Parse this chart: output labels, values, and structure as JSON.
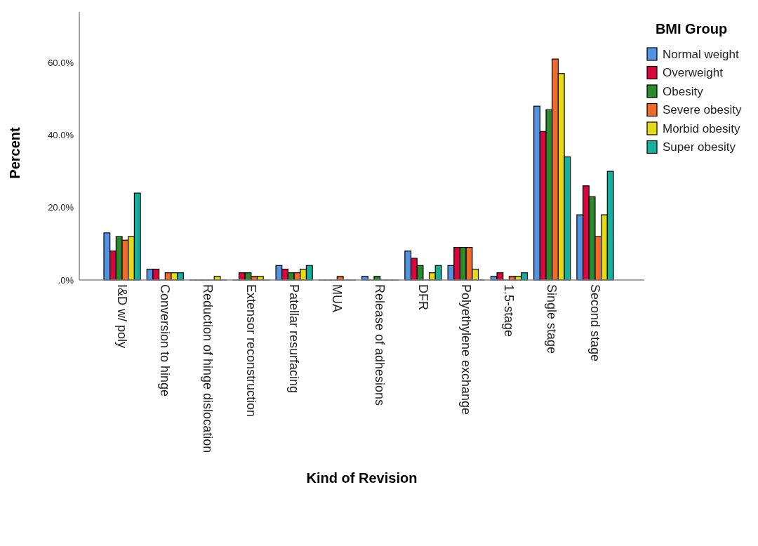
{
  "chart_data": {
    "type": "bar",
    "xlabel": "Kind of Revision",
    "ylabel": "Percent",
    "legend_title": "BMI Group",
    "legend": "right",
    "categories": [
      "I&D w/ poly",
      "Conversion to hinge",
      "Reduction of hinge dislocation",
      "Extensor reconstruction",
      "Patellar resurfacing",
      "MUA",
      "Release of adhesions",
      "DFR",
      "Polyethylene exchange",
      "1.5-stage",
      "Single stage",
      "Second stage"
    ],
    "ylim": [
      0,
      74
    ],
    "yticks": [
      {
        "value": 0,
        "label": ".0%"
      },
      {
        "value": 20,
        "label": "20.0%"
      },
      {
        "value": 40,
        "label": "40.0%"
      },
      {
        "value": 60,
        "label": "60.0%"
      }
    ],
    "series": [
      {
        "name": "Normal weight",
        "color": "#5294e2",
        "values": [
          13,
          3,
          0,
          0,
          4,
          0,
          1,
          8,
          4,
          1,
          48,
          18
        ]
      },
      {
        "name": "Overweight",
        "color": "#d8063c",
        "values": [
          8,
          3,
          0,
          2,
          3,
          0,
          0,
          6,
          9,
          2,
          41,
          26
        ]
      },
      {
        "name": "Obesity",
        "color": "#2b8a2b",
        "values": [
          12,
          0,
          0,
          2,
          2,
          0,
          1,
          4,
          9,
          0,
          47,
          23
        ]
      },
      {
        "name": "Severe obesity",
        "color": "#f26a2a",
        "values": [
          11,
          2,
          0,
          1,
          2,
          1,
          0,
          0,
          9,
          1,
          61,
          12
        ]
      },
      {
        "name": "Morbid obesity",
        "color": "#e6da16",
        "values": [
          12,
          2,
          1,
          1,
          3,
          0,
          0,
          2,
          3,
          1,
          57,
          18
        ]
      },
      {
        "name": "Super obesity",
        "color": "#14b09e",
        "values": [
          24,
          2,
          0,
          0,
          4,
          0,
          0,
          4,
          0,
          2,
          34,
          30
        ]
      }
    ]
  }
}
